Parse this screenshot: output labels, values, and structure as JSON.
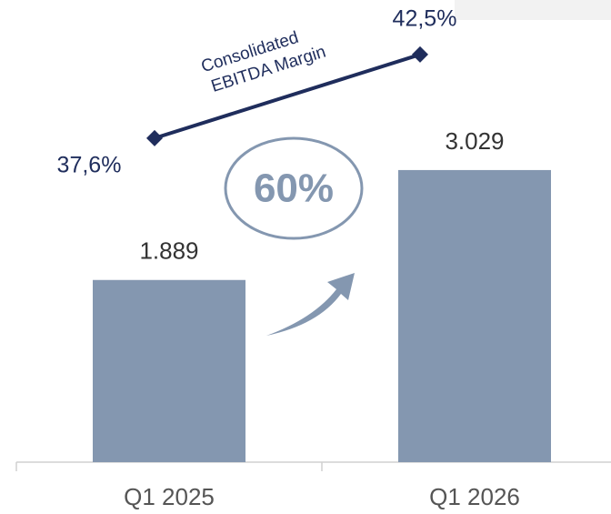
{
  "chart_data": {
    "type": "bar",
    "categories": [
      "Q1 2025",
      "Q1 2026"
    ],
    "series": [
      {
        "name": "EBITDA",
        "type": "bar",
        "color": "#8497b0",
        "values": [
          1889,
          3029
        ],
        "value_labels": [
          "1.889",
          "3.029"
        ]
      },
      {
        "name": "Consolidated EBITDA Margin",
        "type": "line",
        "axis": "y2",
        "color": "#1f2d5c",
        "values": [
          37.6,
          42.5
        ],
        "value_labels": [
          "37,6%",
          "42,5%"
        ]
      }
    ],
    "ylim": [
      0,
      4000
    ],
    "y2lim": [
      32,
      45
    ],
    "annotations": [
      "Consolidated",
      "EBITDA Margin",
      "60%"
    ]
  }
}
